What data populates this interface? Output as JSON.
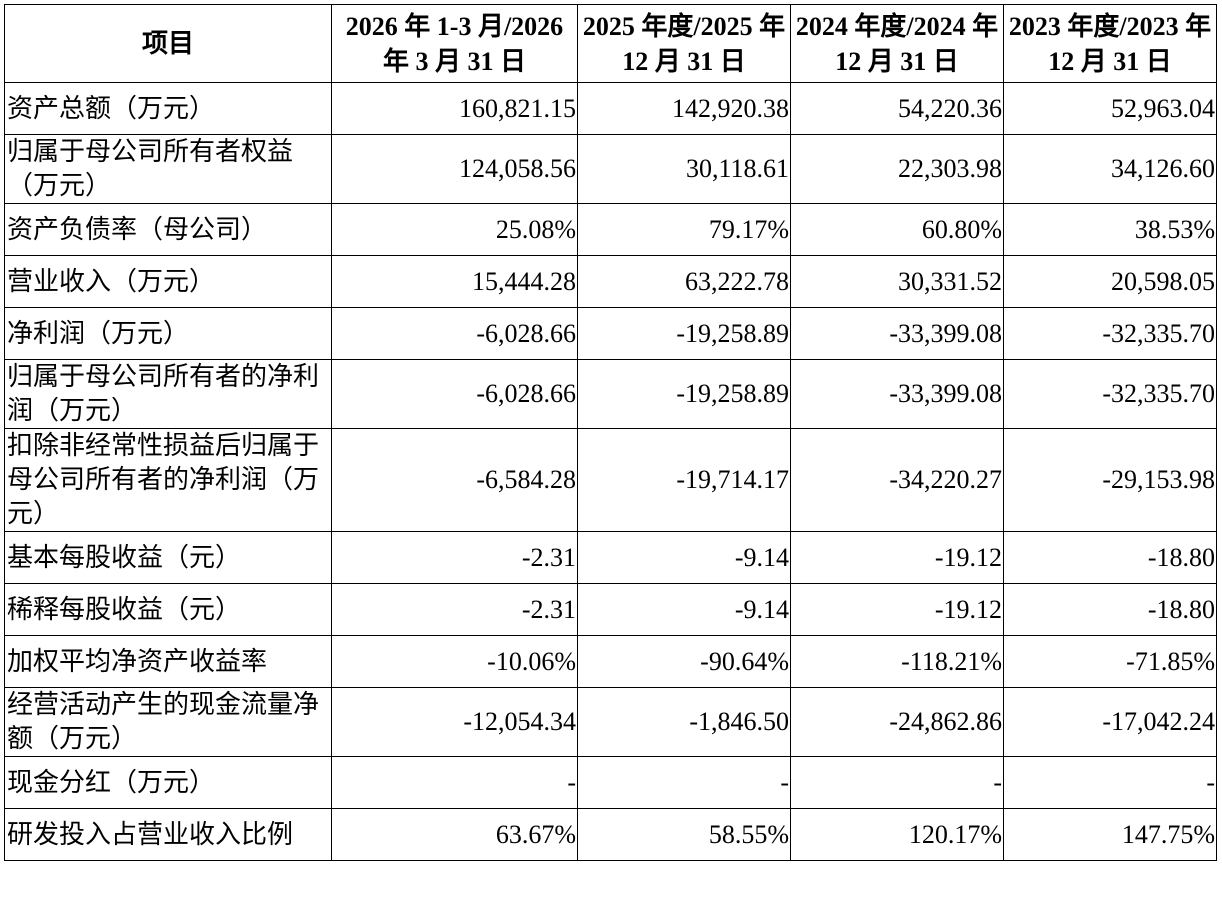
{
  "headers": [
    "项目",
    "2026 年 1-3 月/2026 年 3 月 31 日",
    "2025 年度/2025 年 12 月 31 日",
    "2024 年度/2024 年 12 月 31 日",
    "2023 年度/2023 年 12 月 31 日"
  ],
  "rows": [
    {
      "label": "资产总额（万元）",
      "values": [
        "160,821.15",
        "142,920.38",
        "54,220.36",
        "52,963.04"
      ]
    },
    {
      "label": "归属于母公司所有者权益（万元）",
      "values": [
        "124,058.56",
        "30,118.61",
        "22,303.98",
        "34,126.60"
      ]
    },
    {
      "label": "资产负债率（母公司）",
      "values": [
        "25.08%",
        "79.17%",
        "60.80%",
        "38.53%"
      ]
    },
    {
      "label": "营业收入（万元）",
      "values": [
        "15,444.28",
        "63,222.78",
        "30,331.52",
        "20,598.05"
      ]
    },
    {
      "label": "净利润（万元）",
      "values": [
        "-6,028.66",
        "-19,258.89",
        "-33,399.08",
        "-32,335.70"
      ]
    },
    {
      "label": "归属于母公司所有者的净利润（万元）",
      "values": [
        "-6,028.66",
        "-19,258.89",
        "-33,399.08",
        "-32,335.70"
      ]
    },
    {
      "label": "扣除非经常性损益后归属于母公司所有者的净利润（万元）",
      "values": [
        "-6,584.28",
        "-19,714.17",
        "-34,220.27",
        "-29,153.98"
      ]
    },
    {
      "label": "基本每股收益（元）",
      "values": [
        "-2.31",
        "-9.14",
        "-19.12",
        "-18.80"
      ]
    },
    {
      "label": "稀释每股收益（元）",
      "values": [
        "-2.31",
        "-9.14",
        "-19.12",
        "-18.80"
      ]
    },
    {
      "label": "加权平均净资产收益率",
      "values": [
        "-10.06%",
        "-90.64%",
        "-118.21%",
        "-71.85%"
      ]
    },
    {
      "label": "经营活动产生的现金流量净额（万元）",
      "values": [
        "-12,054.34",
        "-1,846.50",
        "-24,862.86",
        "-17,042.24"
      ]
    },
    {
      "label": "现金分红（万元）",
      "values": [
        "-",
        "-",
        "-",
        "-"
      ]
    },
    {
      "label": "研发投入占营业收入比例",
      "values": [
        "63.67%",
        "58.55%",
        "120.17%",
        "147.75%"
      ]
    }
  ]
}
